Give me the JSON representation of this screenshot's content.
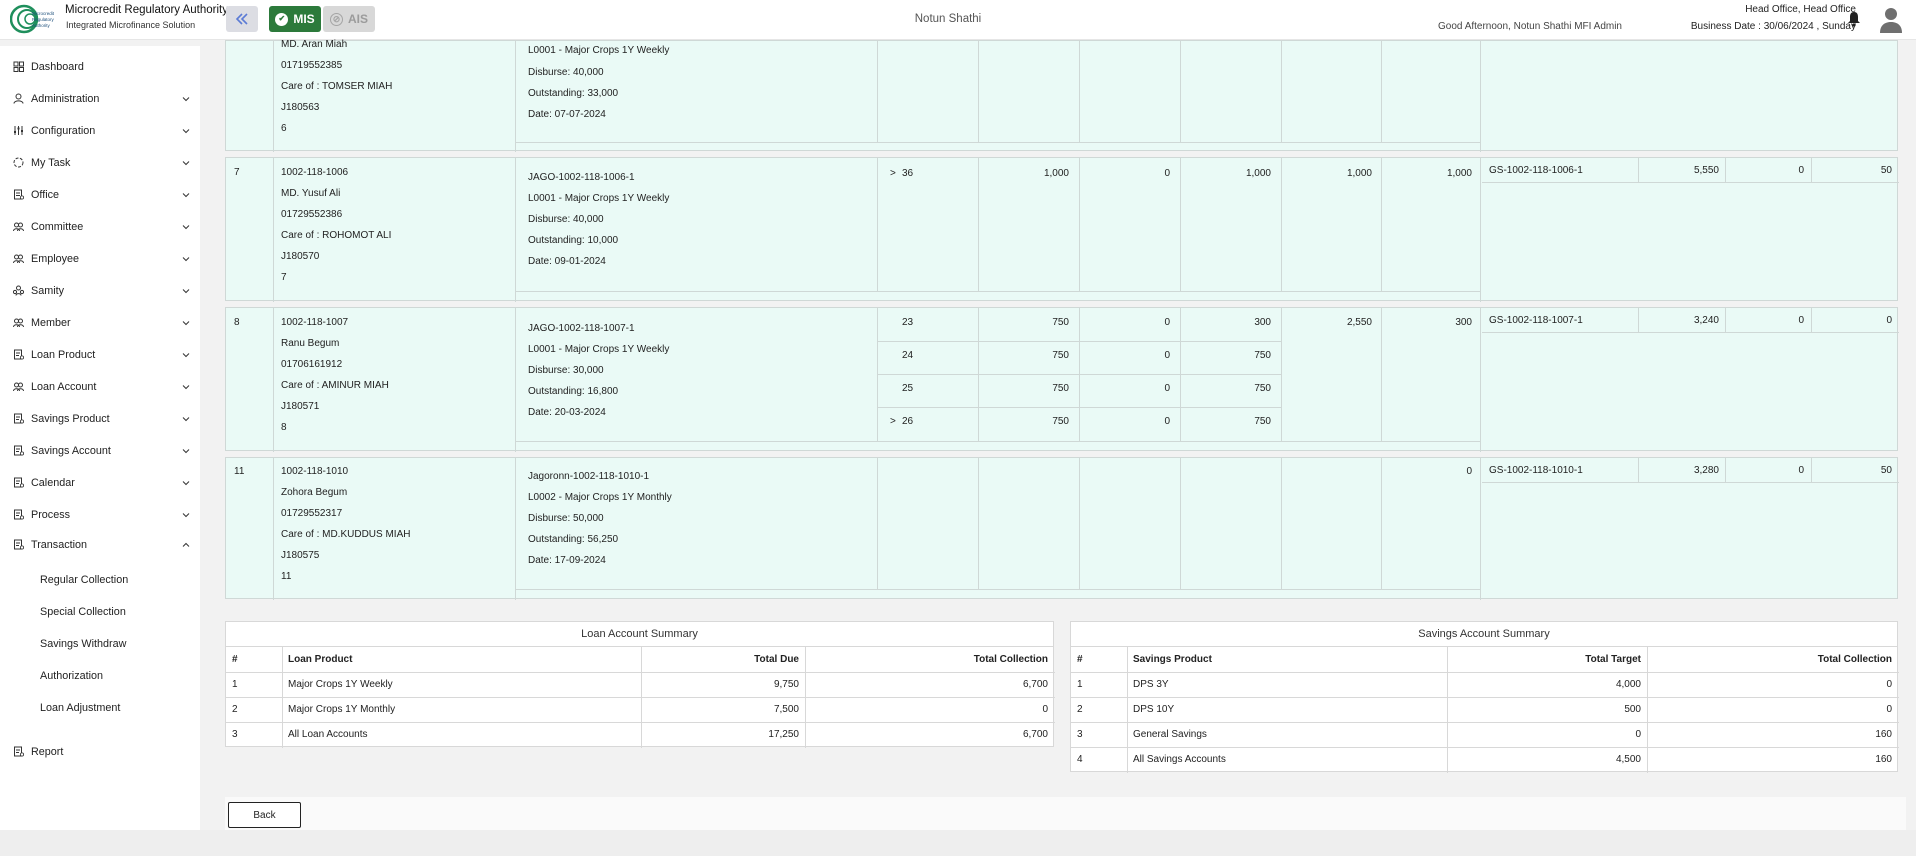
{
  "header": {
    "org_name": "Microcredit Regulatory Authority",
    "org_tagline": "Integrated Microfinance Solution",
    "logo_text": [
      "Microcredit",
      "Regulatory",
      "Authority"
    ],
    "mis_label": "MIS",
    "ais_label": "AIS",
    "center_title": "Notun Shathi",
    "greeting": "Good Afternoon, Notun Shathi MFI Admin",
    "office": "Head Office, Head Office",
    "business_date": "Business Date : 30/06/2024 , Sunday",
    "icons": {
      "collapse": "double-chevron-left-icon",
      "bell": "bell-icon",
      "avatar": "user-avatar-icon"
    }
  },
  "sidebar": {
    "items": [
      {
        "label": "Dashboard",
        "icon": "grid-icon",
        "chevron": false
      },
      {
        "label": "Administration",
        "icon": "user-icon",
        "chevron": true
      },
      {
        "label": "Configuration",
        "icon": "sliders-icon",
        "chevron": true
      },
      {
        "label": "My Task",
        "icon": "task-icon",
        "chevron": true
      },
      {
        "label": "Office",
        "icon": "office-icon",
        "chevron": true
      },
      {
        "label": "Committee",
        "icon": "people-icon",
        "chevron": true
      },
      {
        "label": "Employee",
        "icon": "people-icon",
        "chevron": true
      },
      {
        "label": "Samity",
        "icon": "group-icon",
        "chevron": true
      },
      {
        "label": "Member",
        "icon": "people-icon",
        "chevron": true
      },
      {
        "label": "Loan Product",
        "icon": "document-icon",
        "chevron": true
      },
      {
        "label": "Loan Account",
        "icon": "people-icon",
        "chevron": true
      },
      {
        "label": "Savings Product",
        "icon": "document-icon",
        "chevron": true
      },
      {
        "label": "Savings Account",
        "icon": "document-icon",
        "chevron": true
      },
      {
        "label": "Calendar",
        "icon": "document-icon",
        "chevron": true
      },
      {
        "label": "Process",
        "icon": "document-icon",
        "chevron": true
      },
      {
        "label": "Transaction",
        "icon": "document-icon",
        "chevron": "up"
      }
    ],
    "sub_items": [
      "Regular Collection",
      "Special Collection",
      "Savings Withdraw",
      "Authorization",
      "Loan Adjustment"
    ],
    "report": {
      "label": "Report",
      "icon": "document-icon"
    }
  },
  "rows": [
    {
      "member_lines": [
        "MD. Aran Miah",
        "01719552385",
        "Care of : TOMSER MIAH",
        "J180563",
        "6"
      ],
      "loan_lines": [
        "L0001 - Major Crops 1Y Weekly",
        "Disburse: 40,000",
        "Outstanding: 33,000",
        "Date: 07-07-2024"
      ]
    },
    {
      "sl": "7",
      "member_lines": [
        "1002-118-1006",
        "MD. Yusuf Ali",
        "01729552386",
        "Care of : ROHOMOT ALI",
        "J180570",
        "7"
      ],
      "loan_lines": [
        "JAGO-1002-118-1006-1",
        "L0001 - Major Crops 1Y Weekly",
        "Disburse: 40,000",
        "Outstanding: 10,000",
        "Date: 09-01-2024"
      ],
      "installments": [
        {
          "marker": ">",
          "no": "36",
          "a": "1,000",
          "b": "0",
          "c": "1,000"
        }
      ],
      "col_e": "1,000",
      "col_f": "1,000",
      "savings": {
        "code": "GS-1002-118-1006-1",
        "a": "5,550",
        "b": "0",
        "c": "50"
      }
    },
    {
      "sl": "8",
      "member_lines": [
        "1002-118-1007",
        "Ranu Begum",
        "01706161912",
        "Care of : AMINUR MIAH",
        "J180571",
        "8"
      ],
      "loan_lines": [
        "JAGO-1002-118-1007-1",
        "L0001 - Major Crops 1Y Weekly",
        "Disburse: 30,000",
        "Outstanding: 16,800",
        "Date: 20-03-2024"
      ],
      "installments": [
        {
          "marker": "",
          "no": "23",
          "a": "750",
          "b": "0",
          "c": "300"
        },
        {
          "marker": "",
          "no": "24",
          "a": "750",
          "b": "0",
          "c": "750"
        },
        {
          "marker": "",
          "no": "25",
          "a": "750",
          "b": "0",
          "c": "750"
        },
        {
          "marker": ">",
          "no": "26",
          "a": "750",
          "b": "0",
          "c": "750"
        }
      ],
      "col_e": "2,550",
      "col_f": "300",
      "savings": {
        "code": "GS-1002-118-1007-1",
        "a": "3,240",
        "b": "0",
        "c": "0"
      }
    },
    {
      "sl": "11",
      "member_lines": [
        "1002-118-1010",
        "Zohora Begum",
        "01729552317",
        "Care of : MD.KUDDUS MIAH",
        "J180575",
        "11"
      ],
      "loan_lines": [
        "Jagoronn-1002-118-1010-1",
        "L0002 - Major Crops 1Y Monthly",
        "Disburse: 50,000",
        "Outstanding: 56,250",
        "Date: 17-09-2024"
      ],
      "col_f": "0",
      "savings": {
        "code": "GS-1002-118-1010-1",
        "a": "3,280",
        "b": "0",
        "c": "50"
      }
    }
  ],
  "loan_summary": {
    "title": "Loan Account Summary",
    "headers": [
      "#",
      "Loan Product",
      "Total Due",
      "Total Collection"
    ],
    "rows": [
      [
        "1",
        "Major Crops 1Y Weekly",
        "9,750",
        "6,700"
      ],
      [
        "2",
        "Major Crops 1Y Monthly",
        "7,500",
        "0"
      ],
      [
        "3",
        "All Loan Accounts",
        "17,250",
        "6,700"
      ]
    ]
  },
  "savings_summary": {
    "title": "Savings Account Summary",
    "headers": [
      "#",
      "Savings Product",
      "Total Target",
      "Total Collection"
    ],
    "rows": [
      [
        "1",
        "DPS 3Y",
        "4,000",
        "0"
      ],
      [
        "2",
        "DPS 10Y",
        "500",
        "0"
      ],
      [
        "3",
        "General Savings",
        "0",
        "160"
      ],
      [
        "4",
        "All Savings Accounts",
        "4,500",
        "160"
      ]
    ]
  },
  "back_label": "Back",
  "colors": {
    "accent_green": "#2c7a3b",
    "row_bg": "#eafaf6",
    "border": "#cfd8d6"
  }
}
